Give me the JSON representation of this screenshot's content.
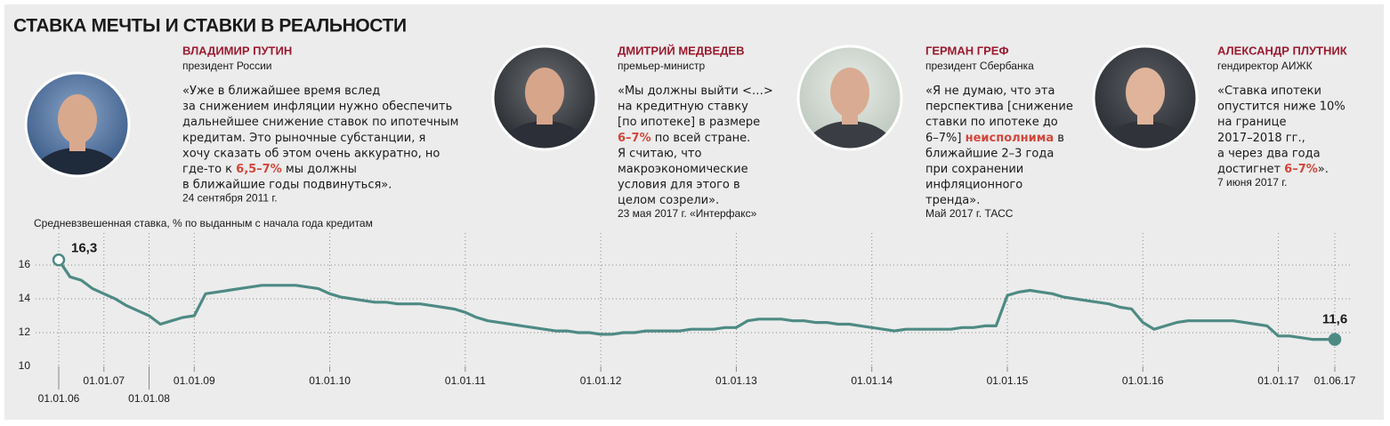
{
  "title": "СТАВКА МЕЧТЫ И СТАВКИ В РЕАЛЬНОСТИ",
  "quotes": [
    {
      "name": "ВЛАДИМИР ПУТИН",
      "role": "президент России",
      "lines": [
        [
          "«Уже в ближайшее время вслед"
        ],
        [
          "за снижением инфляции нужно обеспечить"
        ],
        [
          "дальнейшее снижение ставок по ипотечным"
        ],
        [
          "кредитам. Это рыночные субстанции, я"
        ],
        [
          "хочу сказать об этом очень аккуратно, но"
        ],
        [
          "где-то к ",
          {
            "text": "6,5–7%",
            "color": "#d2473b"
          },
          " мы должны"
        ],
        [
          "в ближайшие годы подвинуться»."
        ]
      ],
      "source": "24 сентября 2011 г."
    },
    {
      "name": "ДМИТРИЙ МЕДВЕДЕВ",
      "role": "премьер-министр",
      "lines": [
        [
          "«Мы должны выйти <…>"
        ],
        [
          "на кредитную ставку"
        ],
        [
          "[по ипотеке] в размере"
        ],
        [
          {
            "text": "6–7%",
            "color": "#d2473b"
          },
          " по всей стране."
        ],
        [
          "Я считаю, что"
        ],
        [
          "макроэкономические"
        ],
        [
          "условия для этого в"
        ],
        [
          "целом созрели»."
        ]
      ],
      "source": "23 мая 2017 г. «Интерфакс»"
    },
    {
      "name": "ГЕРМАН ГРЕФ",
      "role": "президент Сбербанка",
      "lines": [
        [
          "«Я не думаю, что эта"
        ],
        [
          "перспектива [снижение"
        ],
        [
          "ставки по ипотеке до"
        ],
        [
          "6–7%] ",
          {
            "text": "неисполнима",
            "color": "#d2473b"
          },
          " в"
        ],
        [
          "ближайшие 2–3 года"
        ],
        [
          "при сохранении"
        ],
        [
          "инфляционного"
        ],
        [
          "тренда»."
        ]
      ],
      "source": "Май 2017 г. ТАСС"
    },
    {
      "name": "АЛЕКСАНДР ПЛУТНИК",
      "role": "гендиректор АИЖК",
      "lines": [
        [
          "«Ставка ипотеки"
        ],
        [
          "опустится ниже 10%"
        ],
        [
          "на границе"
        ],
        [
          "2017–2018 гг.,"
        ],
        [
          "а через два года"
        ],
        [
          "достигнет ",
          {
            "text": "6–7%",
            "color": "#d2473b"
          },
          "»."
        ]
      ],
      "source": "7 июня 2017 г."
    }
  ],
  "chart_data": {
    "type": "line",
    "y_label": "Средневзвешенная ставка, % по выданным с начала года кредитам",
    "color": "#4e8a84",
    "ylim": [
      10,
      18
    ],
    "yticks": [
      10,
      12,
      14,
      16
    ],
    "grid": true,
    "categories": [
      "01.01.06",
      null,
      null,
      null,
      "01.01.07",
      null,
      null,
      null,
      "01.01.08",
      null,
      null,
      null,
      "01.01.09",
      null,
      null,
      null,
      null,
      null,
      null,
      null,
      null,
      null,
      null,
      null,
      "01.01.10",
      null,
      null,
      null,
      null,
      null,
      null,
      null,
      null,
      null,
      null,
      null,
      "01.01.11",
      null,
      null,
      null,
      null,
      null,
      null,
      null,
      null,
      null,
      null,
      null,
      "01.01.12",
      null,
      null,
      null,
      null,
      null,
      null,
      null,
      null,
      null,
      null,
      null,
      "01.01.13",
      null,
      null,
      null,
      null,
      null,
      null,
      null,
      null,
      null,
      null,
      null,
      "01.01.14",
      null,
      null,
      null,
      null,
      null,
      null,
      null,
      null,
      null,
      null,
      null,
      "01.01.15",
      null,
      null,
      null,
      null,
      null,
      null,
      null,
      null,
      null,
      null,
      null,
      "01.01.16",
      null,
      null,
      null,
      null,
      null,
      null,
      null,
      null,
      null,
      null,
      null,
      "01.01.17",
      null,
      null,
      null,
      null,
      "01.06.17"
    ],
    "values": [
      16.3,
      15.3,
      15.1,
      14.6,
      14.3,
      14.0,
      13.6,
      13.3,
      13.0,
      12.5,
      12.7,
      12.9,
      13.0,
      14.3,
      14.4,
      14.5,
      14.6,
      14.7,
      14.8,
      14.8,
      14.8,
      14.8,
      14.7,
      14.6,
      14.3,
      14.1,
      14.0,
      13.9,
      13.8,
      13.8,
      13.7,
      13.7,
      13.7,
      13.6,
      13.5,
      13.4,
      13.2,
      12.9,
      12.7,
      12.6,
      12.5,
      12.4,
      12.3,
      12.2,
      12.1,
      12.1,
      12.0,
      12.0,
      11.9,
      11.9,
      12.0,
      12.0,
      12.1,
      12.1,
      12.1,
      12.1,
      12.2,
      12.2,
      12.2,
      12.3,
      12.3,
      12.7,
      12.8,
      12.8,
      12.8,
      12.7,
      12.7,
      12.6,
      12.6,
      12.5,
      12.5,
      12.4,
      12.3,
      12.2,
      12.1,
      12.2,
      12.2,
      12.2,
      12.2,
      12.2,
      12.3,
      12.3,
      12.4,
      12.4,
      14.2,
      14.4,
      14.5,
      14.4,
      14.3,
      14.1,
      14.0,
      13.9,
      13.8,
      13.7,
      13.5,
      13.4,
      12.6,
      12.2,
      12.4,
      12.6,
      12.7,
      12.7,
      12.7,
      12.7,
      12.7,
      12.6,
      12.5,
      12.4,
      11.8,
      11.8,
      11.7,
      11.6,
      11.6,
      11.6
    ],
    "value_labels": [
      "16,3",
      null,
      null,
      null,
      null,
      null,
      null,
      null,
      null,
      null,
      null,
      null,
      null,
      null,
      null,
      null,
      null,
      null,
      null,
      null,
      null,
      null,
      null,
      null,
      null,
      null,
      null,
      null,
      null,
      null,
      null,
      null,
      null,
      null,
      null,
      null,
      null,
      null,
      null,
      null,
      null,
      null,
      null,
      null,
      null,
      null,
      null,
      null,
      null,
      null,
      null,
      null,
      null,
      null,
      null,
      null,
      null,
      null,
      null,
      null,
      null,
      null,
      null,
      null,
      null,
      null,
      null,
      null,
      null,
      null,
      null,
      null,
      null,
      null,
      null,
      null,
      null,
      null,
      null,
      null,
      null,
      null,
      null,
      null,
      null,
      null,
      null,
      null,
      null,
      null,
      null,
      null,
      null,
      null,
      null,
      null,
      null,
      null,
      null,
      null,
      null,
      null,
      null,
      null,
      null,
      null,
      null,
      null,
      null,
      null,
      null,
      null,
      null,
      "11,6"
    ]
  }
}
